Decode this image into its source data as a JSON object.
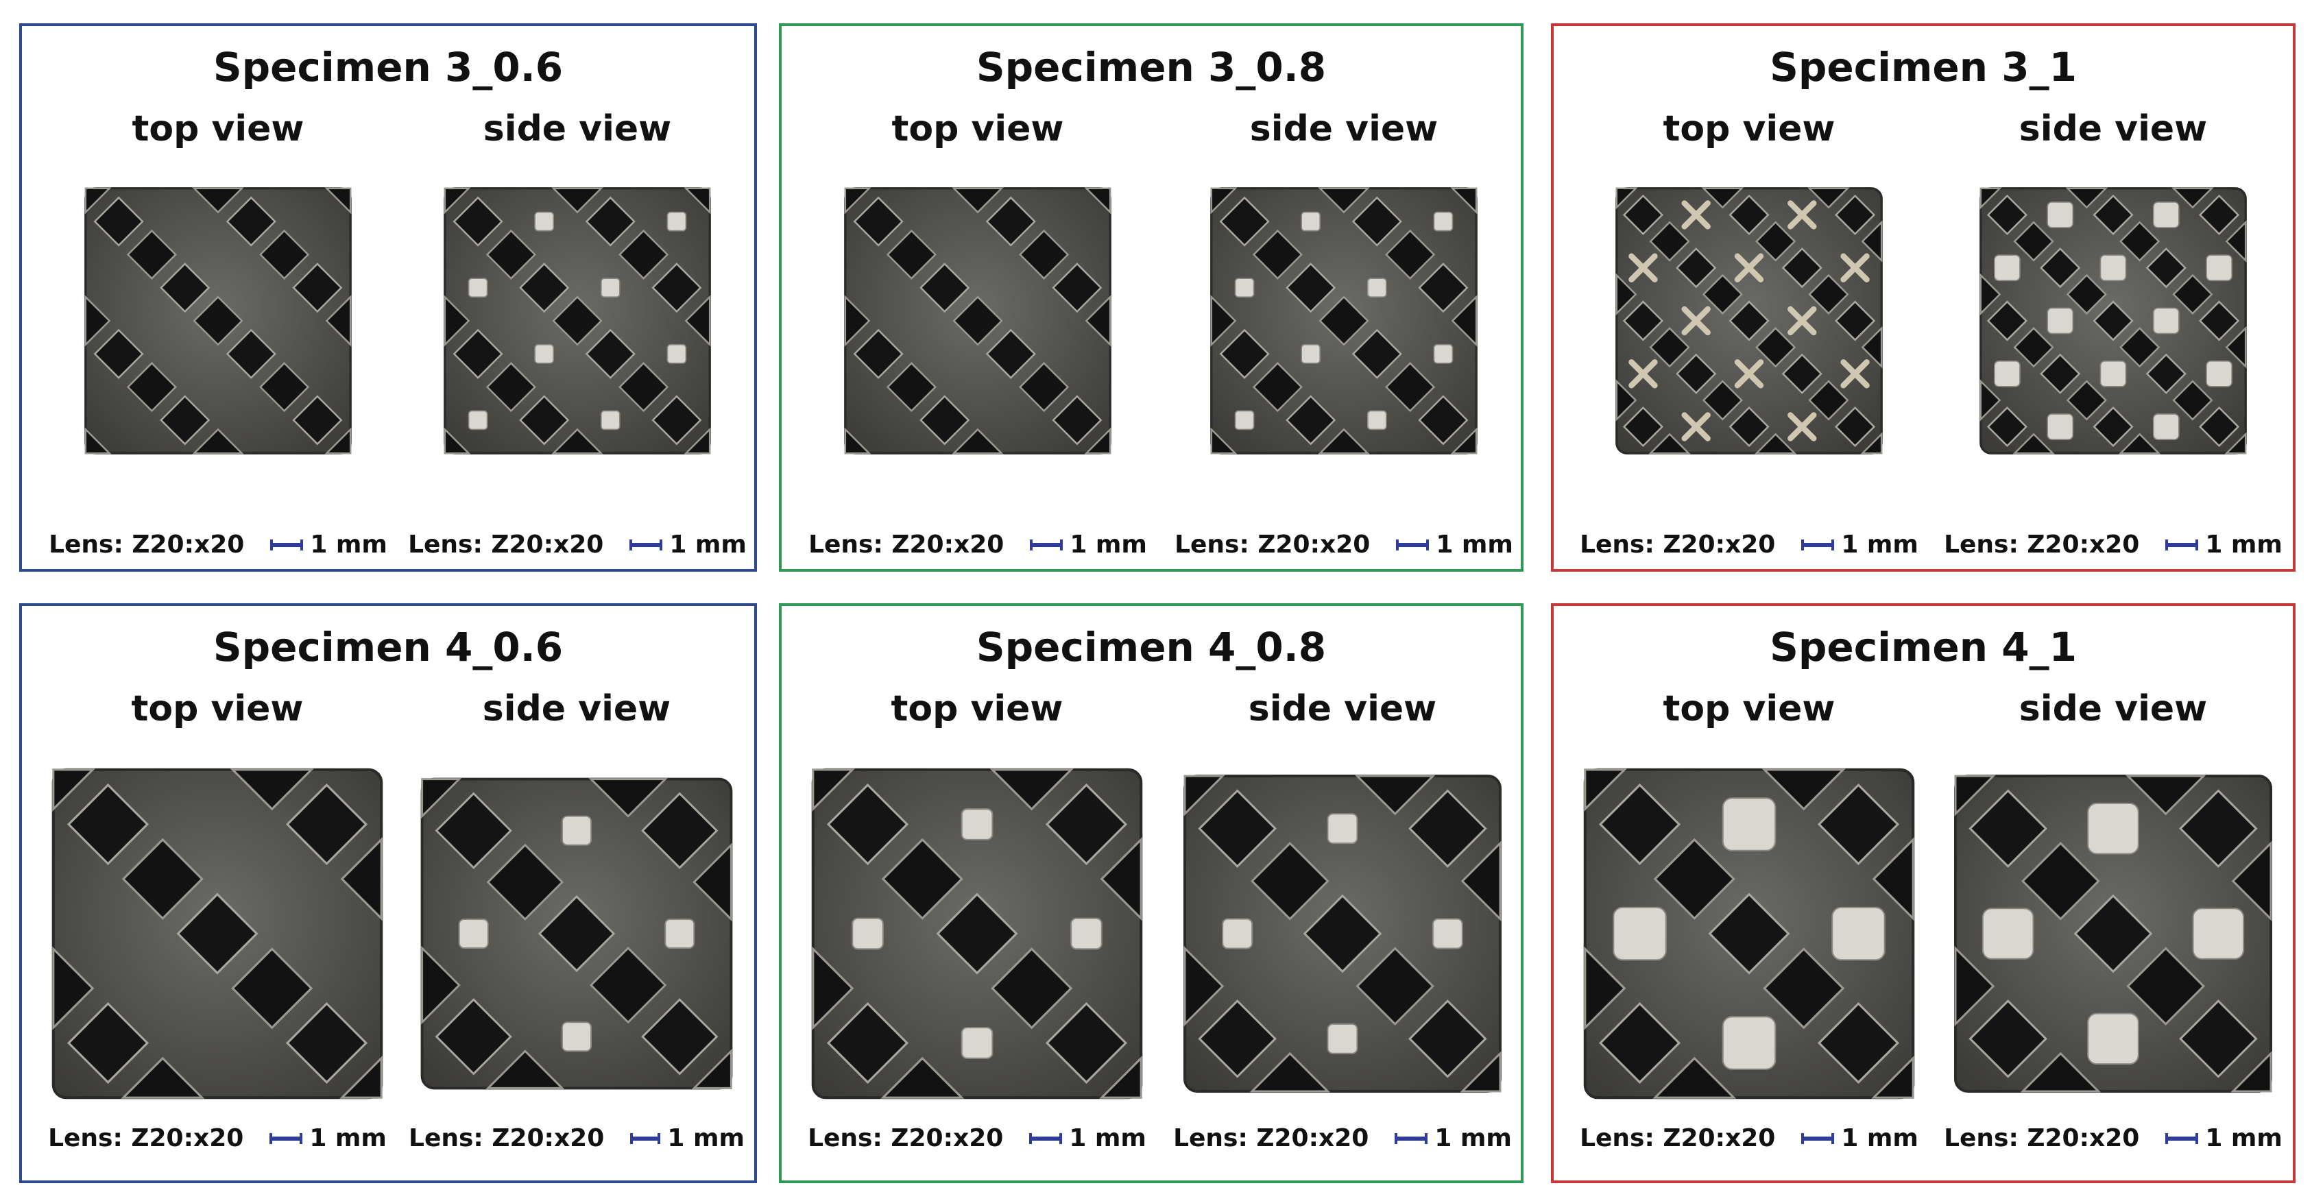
{
  "colors": {
    "blue": "#2e4a8c",
    "green": "#2f9a56",
    "red": "#c43a3a",
    "scale_bar": "#2f3c9a"
  },
  "panels": [
    {
      "title": "Specimen 3_0.6",
      "border": "blue",
      "views": [
        {
          "label": "top view",
          "lens": "Lens: Z20:x20",
          "scale": "1 mm",
          "pattern": "sparse",
          "nodes": "none"
        },
        {
          "label": "side view",
          "lens": "Lens: Z20:x20",
          "scale": "1 mm",
          "pattern": "sparse",
          "nodes": "light"
        }
      ]
    },
    {
      "title": "Specimen 3_0.8",
      "border": "green",
      "views": [
        {
          "label": "top view",
          "lens": "Lens: Z20:x20",
          "scale": "1 mm",
          "pattern": "sparse",
          "nodes": "none"
        },
        {
          "label": "side view",
          "lens": "Lens: Z20:x20",
          "scale": "1 mm",
          "pattern": "sparse",
          "nodes": "light"
        }
      ]
    },
    {
      "title": "Specimen 3_1",
      "border": "red",
      "views": [
        {
          "label": "top view",
          "lens": "Lens: Z20:x20",
          "scale": "1 mm",
          "pattern": "dense",
          "nodes": "cross"
        },
        {
          "label": "side view",
          "lens": "Lens: Z20:x20",
          "scale": "1 mm",
          "pattern": "dense",
          "nodes": "heavy"
        }
      ]
    },
    {
      "title": "Specimen 4_0.6",
      "border": "blue",
      "views": [
        {
          "label": "top view",
          "lens": "Lens: Z20:x20",
          "scale": "1 mm",
          "pattern": "coarse",
          "nodes": "none"
        },
        {
          "label": "side view",
          "lens": "Lens: Z20:x20",
          "scale": "1 mm",
          "pattern": "coarse",
          "nodes": "light"
        }
      ]
    },
    {
      "title": "Specimen 4_0.8",
      "border": "green",
      "views": [
        {
          "label": "top view",
          "lens": "Lens: Z20:x20",
          "scale": "1 mm",
          "pattern": "coarse",
          "nodes": "light"
        },
        {
          "label": "side view",
          "lens": "Lens: Z20:x20",
          "scale": "1 mm",
          "pattern": "coarse",
          "nodes": "light"
        }
      ]
    },
    {
      "title": "Specimen 4_1",
      "border": "red",
      "views": [
        {
          "label": "top view",
          "lens": "Lens: Z20:x20",
          "scale": "1 mm",
          "pattern": "coarse",
          "nodes": "heavy"
        },
        {
          "label": "side view",
          "lens": "Lens: Z20:x20",
          "scale": "1 mm",
          "pattern": "coarse",
          "nodes": "heavy"
        }
      ]
    }
  ]
}
